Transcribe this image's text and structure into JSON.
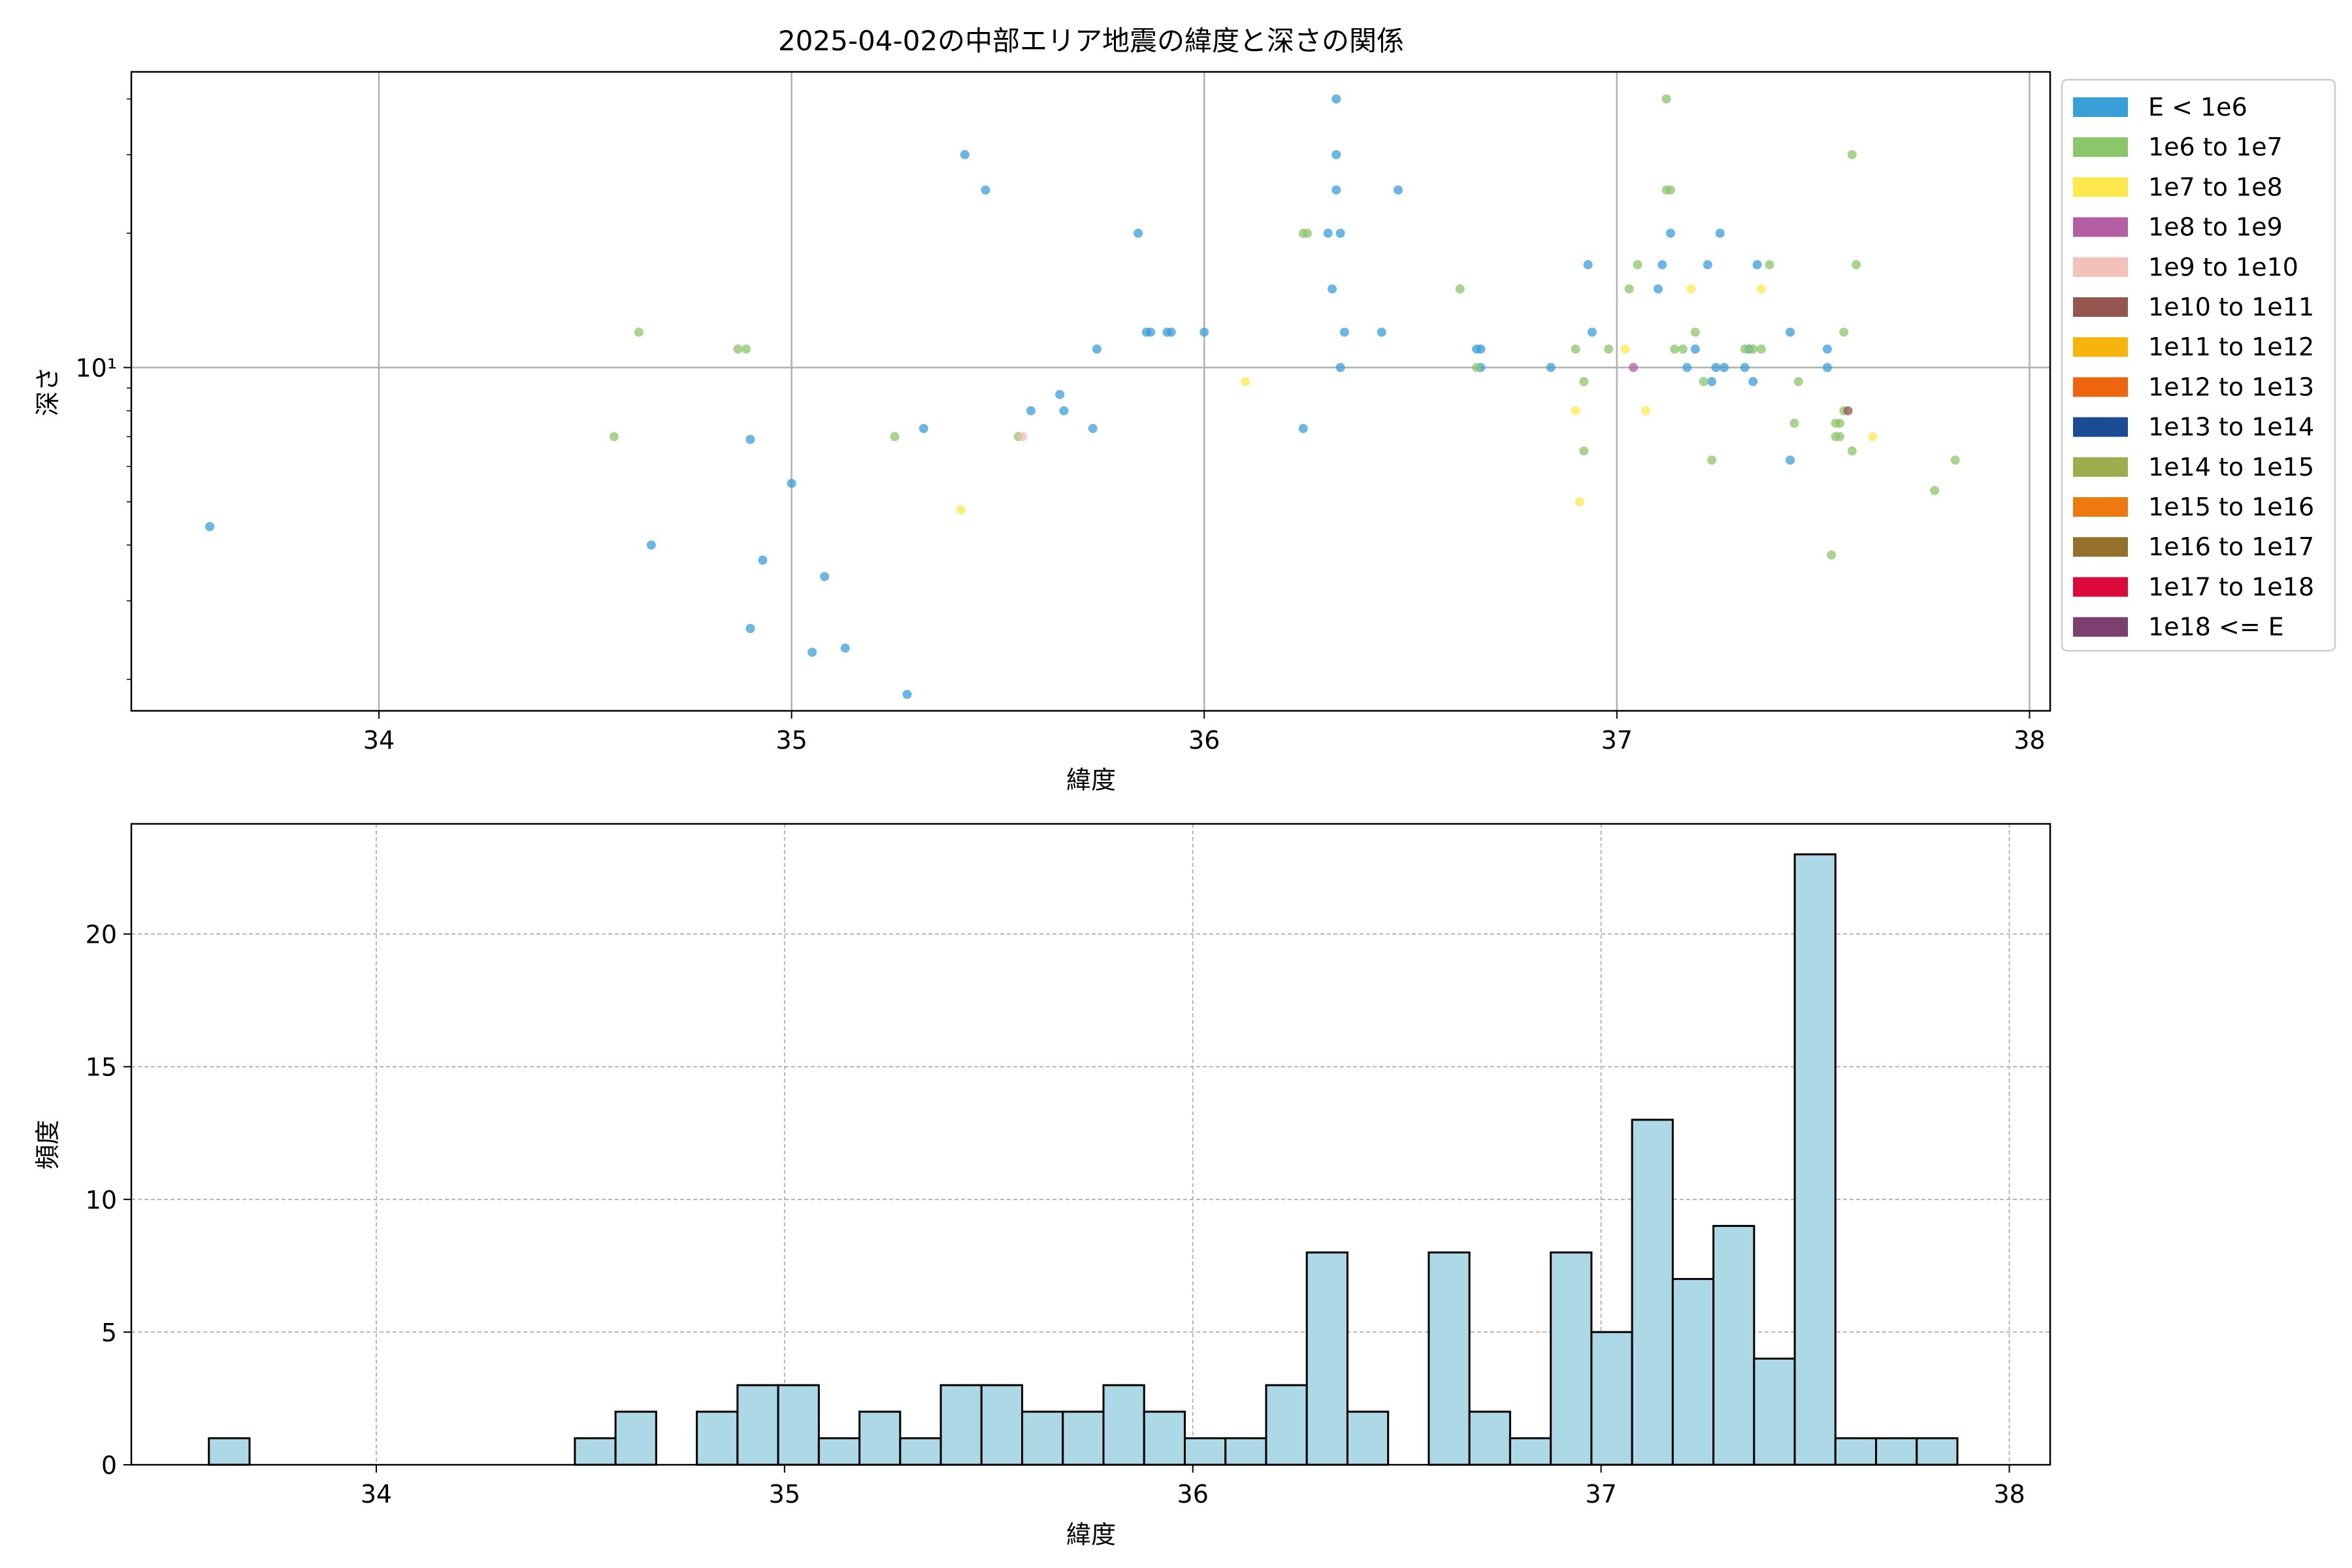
{
  "chart_data": [
    {
      "type": "scatter",
      "title": "2025-04-02の中部エリア地震の緯度と深さの関係",
      "xlabel": "緯度",
      "ylabel": "深さ",
      "xlim": [
        33.4,
        38.05
      ],
      "ylim": [
        1.7,
        46
      ],
      "yscale": "log",
      "xticks": [
        34,
        35,
        36,
        37,
        38
      ],
      "yticks": [
        {
          "value": 10,
          "label": "10¹"
        }
      ],
      "y_minor_ticks": [
        2,
        3,
        4,
        5,
        6,
        7,
        8,
        9,
        20,
        30,
        40
      ],
      "grid": true,
      "legend_position": "outside-right",
      "legend": [
        {
          "label": "E < 1e6",
          "color": "#3a9ed8"
        },
        {
          "label": "1e6 to 1e7",
          "color": "#8cc66a"
        },
        {
          "label": "1e7 to 1e8",
          "color": "#fde94d"
        },
        {
          "label": "1e8 to 1e9",
          "color": "#b45ea4"
        },
        {
          "label": "1e9 to 1e10",
          "color": "#f4c0ba"
        },
        {
          "label": "1e10 to 1e11",
          "color": "#955650"
        },
        {
          "label": "1e11 to 1e12",
          "color": "#f7b40c"
        },
        {
          "label": "1e12 to 1e13",
          "color": "#ee650f"
        },
        {
          "label": "1e13 to 1e14",
          "color": "#1a4b94"
        },
        {
          "label": "1e14 to 1e15",
          "color": "#9bad4e"
        },
        {
          "label": "1e15 to 1e16",
          "color": "#ec7a0f"
        },
        {
          "label": "1e16 to 1e17",
          "color": "#95702a"
        },
        {
          "label": "1e17 to 1e18",
          "color": "#dc0a3b"
        },
        {
          "label": "1e18 <= E",
          "color": "#7d3f6e"
        }
      ],
      "series": [
        {
          "name": "E < 1e6",
          "color": "#3a9ed8",
          "points": [
            [
              33.59,
              4.4
            ],
            [
              34.66,
              4.0
            ],
            [
              34.9,
              6.9
            ],
            [
              34.9,
              2.6
            ],
            [
              34.93,
              3.7
            ],
            [
              35.0,
              5.5
            ],
            [
              35.05,
              2.3
            ],
            [
              35.08,
              3.4
            ],
            [
              35.13,
              2.35
            ],
            [
              35.28,
              1.85
            ],
            [
              35.32,
              7.3
            ],
            [
              35.42,
              30.0
            ],
            [
              35.47,
              25.0
            ],
            [
              35.58,
              8.0
            ],
            [
              35.65,
              8.7
            ],
            [
              35.66,
              8.0
            ],
            [
              35.73,
              7.3
            ],
            [
              35.74,
              11.0
            ],
            [
              35.84,
              20.0
            ],
            [
              35.86,
              12.0
            ],
            [
              35.87,
              12.0
            ],
            [
              35.91,
              12.0
            ],
            [
              35.92,
              12.0
            ],
            [
              36.0,
              12.0
            ],
            [
              36.24,
              7.3
            ],
            [
              36.3,
              20.0
            ],
            [
              36.31,
              15.0
            ],
            [
              36.32,
              40.0
            ],
            [
              36.32,
              30.0
            ],
            [
              36.32,
              25.0
            ],
            [
              36.33,
              20.0
            ],
            [
              36.33,
              10.0
            ],
            [
              36.34,
              12.0
            ],
            [
              36.43,
              12.0
            ],
            [
              36.47,
              25.0
            ],
            [
              36.66,
              11.0
            ],
            [
              36.67,
              11.0
            ],
            [
              36.67,
              10.0
            ],
            [
              36.84,
              10.0
            ],
            [
              36.93,
              17.0
            ],
            [
              36.94,
              12.0
            ],
            [
              37.1,
              15.0
            ],
            [
              37.11,
              17.0
            ],
            [
              37.13,
              20.0
            ],
            [
              37.17,
              10.0
            ],
            [
              37.19,
              11.0
            ],
            [
              37.22,
              17.0
            ],
            [
              37.23,
              9.3
            ],
            [
              37.24,
              10.0
            ],
            [
              37.25,
              20.0
            ],
            [
              37.26,
              10.0
            ],
            [
              37.31,
              10.0
            ],
            [
              37.32,
              11.0
            ],
            [
              37.33,
              9.3
            ],
            [
              37.34,
              17.0
            ],
            [
              37.42,
              12.0
            ],
            [
              37.42,
              6.2
            ],
            [
              37.51,
              11.0
            ],
            [
              37.51,
              10.0
            ]
          ]
        },
        {
          "name": "1e6 to 1e7",
          "color": "#8cc66a",
          "points": [
            [
              34.57,
              7.0
            ],
            [
              34.63,
              12.0
            ],
            [
              34.87,
              11.0
            ],
            [
              34.89,
              11.0
            ],
            [
              35.25,
              7.0
            ],
            [
              35.55,
              7.0
            ],
            [
              36.24,
              20.0
            ],
            [
              36.25,
              20.0
            ],
            [
              36.62,
              15.0
            ],
            [
              36.66,
              10.0
            ],
            [
              36.9,
              11.0
            ],
            [
              36.92,
              9.3
            ],
            [
              36.92,
              6.5
            ],
            [
              36.98,
              11.0
            ],
            [
              37.03,
              15.0
            ],
            [
              37.05,
              17.0
            ],
            [
              37.12,
              40.0
            ],
            [
              37.12,
              25.0
            ],
            [
              37.13,
              25.0
            ],
            [
              37.14,
              11.0
            ],
            [
              37.16,
              11.0
            ],
            [
              37.19,
              12.0
            ],
            [
              37.21,
              9.3
            ],
            [
              37.23,
              6.2
            ],
            [
              37.31,
              11.0
            ],
            [
              37.33,
              11.0
            ],
            [
              37.35,
              11.0
            ],
            [
              37.37,
              17.0
            ],
            [
              37.43,
              7.5
            ],
            [
              37.44,
              9.3
            ],
            [
              37.52,
              3.8
            ],
            [
              37.53,
              7.5
            ],
            [
              37.53,
              7.0
            ],
            [
              37.54,
              7.5
            ],
            [
              37.54,
              7.0
            ],
            [
              37.55,
              8.0
            ],
            [
              37.55,
              12.0
            ],
            [
              37.57,
              30.0
            ],
            [
              37.57,
              6.5
            ],
            [
              37.58,
              17.0
            ],
            [
              37.77,
              5.3
            ],
            [
              37.82,
              6.2
            ]
          ]
        },
        {
          "name": "1e7 to 1e8",
          "color": "#fde94d",
          "points": [
            [
              35.41,
              4.8
            ],
            [
              36.1,
              9.3
            ],
            [
              36.9,
              8.0
            ],
            [
              36.91,
              5.0
            ],
            [
              37.02,
              11.0
            ],
            [
              37.07,
              8.0
            ],
            [
              37.18,
              15.0
            ],
            [
              37.35,
              15.0
            ],
            [
              37.62,
              7.0
            ]
          ]
        },
        {
          "name": "1e8 to 1e9",
          "color": "#b45ea4",
          "points": [
            [
              37.04,
              10.0
            ]
          ]
        },
        {
          "name": "1e9 to 1e10",
          "color": "#f4c0ba",
          "points": [
            [
              35.56,
              7.0
            ]
          ]
        },
        {
          "name": "1e10 to 1e11",
          "color": "#955650",
          "points": [
            [
              37.56,
              8.0
            ]
          ]
        }
      ]
    },
    {
      "type": "bar",
      "subtype": "histogram",
      "xlabel": "緯度",
      "ylabel": "頻度",
      "xlim": [
        33.4,
        38.1
      ],
      "ylim": [
        0,
        24.15
      ],
      "xticks": [
        34,
        35,
        36,
        37,
        38
      ],
      "yticks": [
        0,
        5,
        10,
        15,
        20
      ],
      "grid": true,
      "color": "#add8e6",
      "edgecolor": "#000000",
      "bin_start": 33.59,
      "bin_width": 0.0996,
      "counts": [
        1,
        0,
        0,
        0,
        0,
        0,
        0,
        0,
        0,
        1,
        2,
        0,
        2,
        3,
        3,
        1,
        2,
        1,
        3,
        3,
        2,
        2,
        3,
        2,
        1,
        1,
        3,
        8,
        2,
        0,
        8,
        2,
        1,
        8,
        5,
        13,
        7,
        9,
        4,
        23,
        1,
        1,
        1
      ]
    }
  ]
}
